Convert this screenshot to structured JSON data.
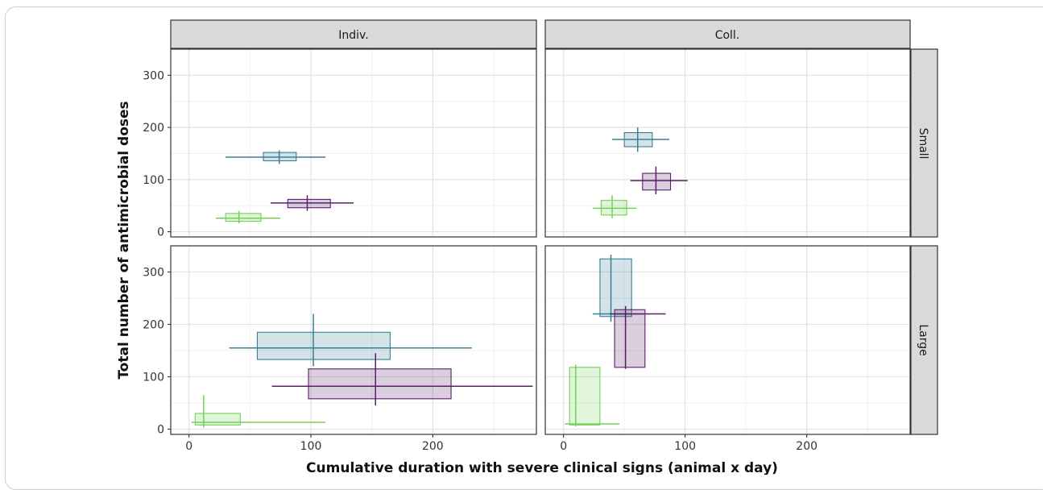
{
  "chart_data": {
    "type": "scatter",
    "xlabel": "Cumulative duration with severe clinical signs (animal x day)",
    "ylabel": "Total number of antimicrobial doses",
    "facet_columns": [
      "Indiv.",
      "Coll."
    ],
    "facet_rows": [
      "Small",
      "Large"
    ],
    "xlim": [
      -15,
      285
    ],
    "ylim": [
      -10,
      350
    ],
    "x_ticks": [
      0,
      100,
      200
    ],
    "y_ticks": [
      0,
      100,
      200,
      300
    ],
    "grid": true,
    "series_colors": [
      "#3b7f95",
      "#5a1e6a",
      "#74d055"
    ],
    "panels": [
      {
        "col": "Indiv.",
        "row": "Small",
        "series": [
          {
            "color": "#3b7f95",
            "box": {
              "x": [
                61,
                74,
                88
              ],
              "y": [
                136,
                142,
                152
              ]
            },
            "whisker": {
              "x": [
                30,
                112
              ],
              "y": [
                130,
                156
              ]
            },
            "center": [
              74,
              143
            ]
          },
          {
            "color": "#5a1e6a",
            "box": {
              "x": [
                81,
                97,
                116
              ],
              "y": [
                46,
                55,
                62
              ]
            },
            "whisker": {
              "x": [
                67,
                135
              ],
              "y": [
                40,
                70
              ]
            },
            "center": [
              97,
              55
            ]
          },
          {
            "color": "#74d055",
            "box": {
              "x": [
                30,
                41,
                59
              ],
              "y": [
                20,
                26,
                35
              ]
            },
            "whisker": {
              "x": [
                22,
                75
              ],
              "y": [
                16,
                40
              ]
            },
            "center": [
              41,
              26
            ]
          }
        ]
      },
      {
        "col": "Coll.",
        "row": "Small",
        "series": [
          {
            "color": "#3b7f95",
            "box": {
              "x": [
                50,
                61,
                73
              ],
              "y": [
                163,
                177,
                190
              ]
            },
            "whisker": {
              "x": [
                40,
                87
              ],
              "y": [
                153,
                200
              ]
            },
            "center": [
              61,
              177
            ]
          },
          {
            "color": "#5a1e6a",
            "box": {
              "x": [
                65,
                76,
                88
              ],
              "y": [
                80,
                98,
                112
              ]
            },
            "whisker": {
              "x": [
                55,
                102
              ],
              "y": [
                72,
                125
              ]
            },
            "center": [
              76,
              98
            ]
          },
          {
            "color": "#74d055",
            "box": {
              "x": [
                31,
                40,
                52
              ],
              "y": [
                32,
                45,
                60
              ]
            },
            "whisker": {
              "x": [
                24,
                60
              ],
              "y": [
                26,
                70
              ]
            },
            "center": [
              40,
              45
            ]
          }
        ]
      },
      {
        "col": "Indiv.",
        "row": "Large",
        "series": [
          {
            "color": "#3b7f95",
            "box": {
              "x": [
                56,
                102,
                165
              ],
              "y": [
                133,
                155,
                185
              ]
            },
            "whisker": {
              "x": [
                33,
                232
              ],
              "y": [
                120,
                220
              ]
            },
            "center": [
              102,
              155
            ]
          },
          {
            "color": "#5a1e6a",
            "box": {
              "x": [
                98,
                153,
                215
              ],
              "y": [
                58,
                82,
                115
              ]
            },
            "whisker": {
              "x": [
                68,
                282
              ],
              "y": [
                45,
                145
              ]
            },
            "center": [
              153,
              82
            ]
          },
          {
            "color": "#74d055",
            "box": {
              "x": [
                5,
                12,
                42
              ],
              "y": [
                8,
                13,
                30
              ]
            },
            "whisker": {
              "x": [
                2,
                112
              ],
              "y": [
                3,
                65
              ]
            },
            "center": [
              12,
              13
            ]
          }
        ]
      },
      {
        "col": "Coll.",
        "row": "Large",
        "series": [
          {
            "color": "#3b7f95",
            "box": {
              "x": [
                30,
                39,
                56
              ],
              "y": [
                215,
                220,
                325
              ]
            },
            "whisker": {
              "x": [
                24,
                66
              ],
              "y": [
                205,
                333
              ]
            },
            "center": [
              39,
              220
            ]
          },
          {
            "color": "#5a1e6a",
            "box": {
              "x": [
                42,
                51,
                67
              ],
              "y": [
                118,
                220,
                228
              ]
            },
            "whisker": {
              "x": [
                38,
                84
              ],
              "y": [
                115,
                235
              ]
            },
            "center": [
              51,
              220
            ]
          },
          {
            "color": "#74d055",
            "box": {
              "x": [
                5,
                10,
                30
              ],
              "y": [
                8,
                10,
                118
              ]
            },
            "whisker": {
              "x": [
                1,
                46
              ],
              "y": [
                5,
                123
              ]
            },
            "center": [
              10,
              10
            ]
          }
        ]
      }
    ]
  }
}
